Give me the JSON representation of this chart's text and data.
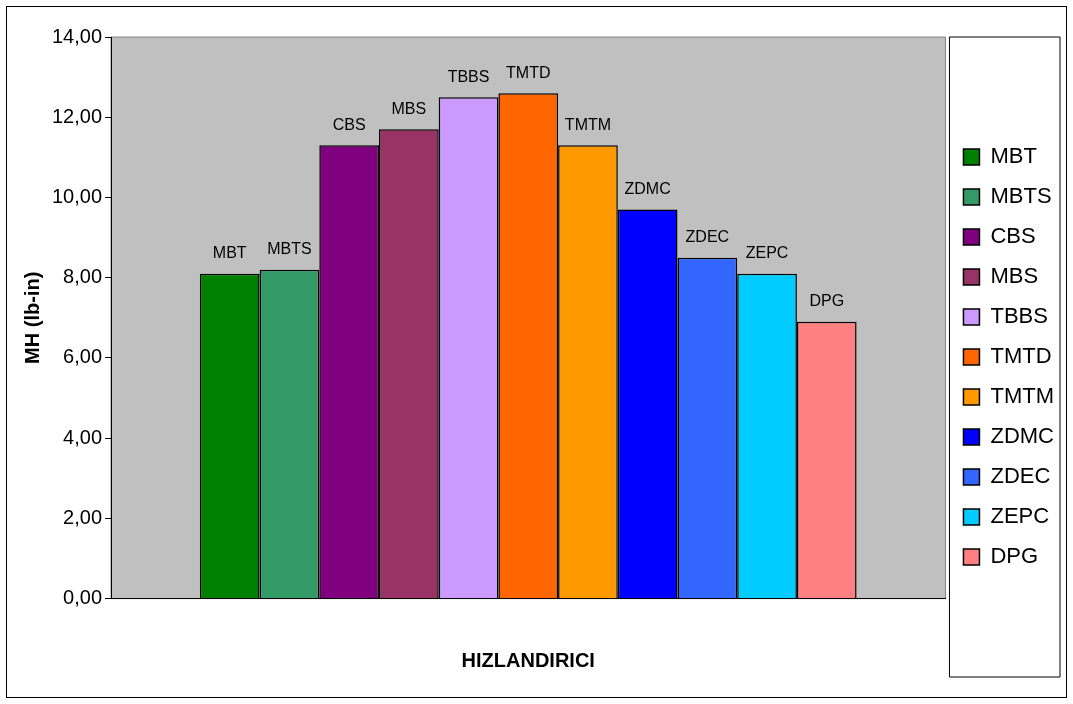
{
  "chart_data": {
    "type": "bar",
    "xlabel": "HIZLANDIRICI",
    "ylabel": "MH (lb-in)",
    "categories": [
      null
    ],
    "series": [
      {
        "name": "MBT",
        "color": "#008000",
        "values": [
          8.1
        ]
      },
      {
        "name": "MBTS",
        "color": "#339966",
        "values": [
          8.2
        ]
      },
      {
        "name": "CBS",
        "color": "#800080",
        "values": [
          11.3
        ]
      },
      {
        "name": "MBS",
        "color": "#993366",
        "values": [
          11.7
        ]
      },
      {
        "name": "TBBS",
        "color": "#cc99ff",
        "values": [
          12.5
        ]
      },
      {
        "name": "TMTD",
        "color": "#ff6600",
        "values": [
          12.6
        ]
      },
      {
        "name": "TMTM",
        "color": "#ff9900",
        "values": [
          11.3
        ]
      },
      {
        "name": "ZDMC",
        "color": "#0000ff",
        "values": [
          9.7
        ]
      },
      {
        "name": "ZDEC",
        "color": "#3366ff",
        "values": [
          8.5
        ]
      },
      {
        "name": "ZEPC",
        "color": "#00ccff",
        "values": [
          8.1
        ]
      },
      {
        "name": "DPG",
        "color": "#ff8080",
        "values": [
          6.9
        ]
      }
    ],
    "ylim": [
      0,
      14
    ],
    "yticks": [
      {
        "value": 0,
        "label": "0,00"
      },
      {
        "value": 2,
        "label": "2,00"
      },
      {
        "value": 4,
        "label": "4,00"
      },
      {
        "value": 6,
        "label": "6,00"
      },
      {
        "value": 8,
        "label": "8,00"
      },
      {
        "value": 10,
        "label": "10,00"
      },
      {
        "value": 12,
        "label": "12,00"
      },
      {
        "value": 14,
        "label": "14,00"
      }
    ],
    "grid": false,
    "legend": "right"
  }
}
